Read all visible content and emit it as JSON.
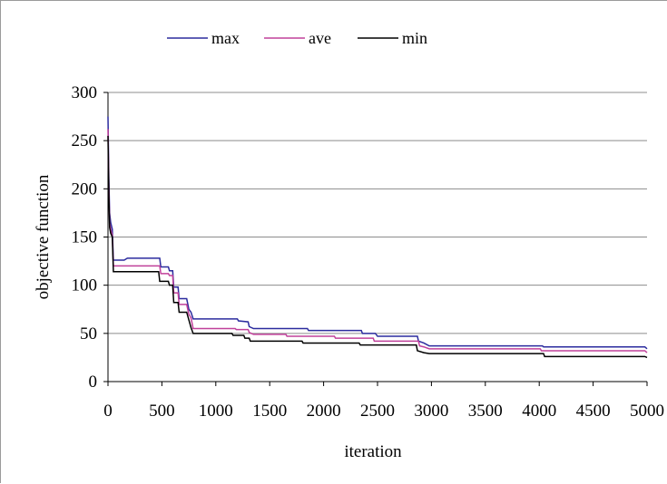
{
  "chart_data": {
    "type": "line",
    "title": "",
    "xlabel": "iteration",
    "ylabel": "objective function",
    "xlim": [
      0,
      5000
    ],
    "ylim": [
      0,
      300
    ],
    "x_ticks": [
      0,
      500,
      1000,
      1500,
      2000,
      2500,
      3000,
      3500,
      4000,
      4500,
      5000
    ],
    "y_ticks": [
      0,
      50,
      100,
      150,
      200,
      250,
      300
    ],
    "grid": "horizontal",
    "legend_position": "top",
    "series": [
      {
        "name": "max",
        "color": "#2b2b9e",
        "points": [
          [
            0,
            275
          ],
          [
            8,
            210
          ],
          [
            15,
            175
          ],
          [
            25,
            165
          ],
          [
            40,
            158
          ],
          [
            50,
            126
          ],
          [
            150,
            126
          ],
          [
            180,
            128
          ],
          [
            480,
            128
          ],
          [
            490,
            119
          ],
          [
            560,
            119
          ],
          [
            570,
            115
          ],
          [
            600,
            115
          ],
          [
            610,
            98
          ],
          [
            650,
            98
          ],
          [
            660,
            86
          ],
          [
            730,
            86
          ],
          [
            750,
            75
          ],
          [
            770,
            72
          ],
          [
            790,
            65
          ],
          [
            1200,
            65
          ],
          [
            1210,
            63
          ],
          [
            1300,
            62
          ],
          [
            1310,
            57
          ],
          [
            1350,
            55
          ],
          [
            1850,
            55
          ],
          [
            1860,
            53
          ],
          [
            2350,
            53
          ],
          [
            2360,
            50
          ],
          [
            2480,
            50
          ],
          [
            2500,
            47
          ],
          [
            2870,
            47
          ],
          [
            2880,
            42
          ],
          [
            2930,
            40
          ],
          [
            2980,
            37
          ],
          [
            4030,
            37
          ],
          [
            4040,
            36
          ],
          [
            4980,
            36
          ],
          [
            5000,
            34
          ]
        ]
      },
      {
        "name": "ave",
        "color": "#c0409a",
        "points": [
          [
            0,
            262
          ],
          [
            8,
            200
          ],
          [
            15,
            165
          ],
          [
            25,
            158
          ],
          [
            40,
            152
          ],
          [
            50,
            120
          ],
          [
            480,
            120
          ],
          [
            490,
            112
          ],
          [
            560,
            112
          ],
          [
            570,
            110
          ],
          [
            600,
            110
          ],
          [
            610,
            92
          ],
          [
            650,
            92
          ],
          [
            660,
            80
          ],
          [
            730,
            80
          ],
          [
            750,
            70
          ],
          [
            770,
            66
          ],
          [
            790,
            55
          ],
          [
            1180,
            55
          ],
          [
            1190,
            54
          ],
          [
            1300,
            54
          ],
          [
            1310,
            51
          ],
          [
            1350,
            49
          ],
          [
            1650,
            49
          ],
          [
            1660,
            47
          ],
          [
            2100,
            47
          ],
          [
            2110,
            45
          ],
          [
            2460,
            45
          ],
          [
            2470,
            42
          ],
          [
            2880,
            42
          ],
          [
            2890,
            37
          ],
          [
            2930,
            36
          ],
          [
            2980,
            34
          ],
          [
            4010,
            34
          ],
          [
            4020,
            32
          ],
          [
            4980,
            32
          ],
          [
            5000,
            30
          ]
        ]
      },
      {
        "name": "min",
        "color": "#000000",
        "points": [
          [
            0,
            255
          ],
          [
            8,
            195
          ],
          [
            15,
            160
          ],
          [
            25,
            154
          ],
          [
            40,
            150
          ],
          [
            50,
            114
          ],
          [
            470,
            114
          ],
          [
            480,
            104
          ],
          [
            560,
            104
          ],
          [
            570,
            100
          ],
          [
            600,
            100
          ],
          [
            610,
            82
          ],
          [
            650,
            82
          ],
          [
            660,
            72
          ],
          [
            730,
            72
          ],
          [
            750,
            64
          ],
          [
            770,
            56
          ],
          [
            790,
            50
          ],
          [
            1150,
            50
          ],
          [
            1160,
            48
          ],
          [
            1260,
            48
          ],
          [
            1270,
            45
          ],
          [
            1310,
            45
          ],
          [
            1320,
            42
          ],
          [
            1800,
            42
          ],
          [
            1810,
            40
          ],
          [
            2330,
            40
          ],
          [
            2340,
            38
          ],
          [
            2860,
            38
          ],
          [
            2870,
            32
          ],
          [
            2930,
            30
          ],
          [
            2980,
            29
          ],
          [
            4040,
            29
          ],
          [
            4050,
            26
          ],
          [
            4980,
            26
          ],
          [
            5000,
            25
          ]
        ]
      }
    ]
  }
}
